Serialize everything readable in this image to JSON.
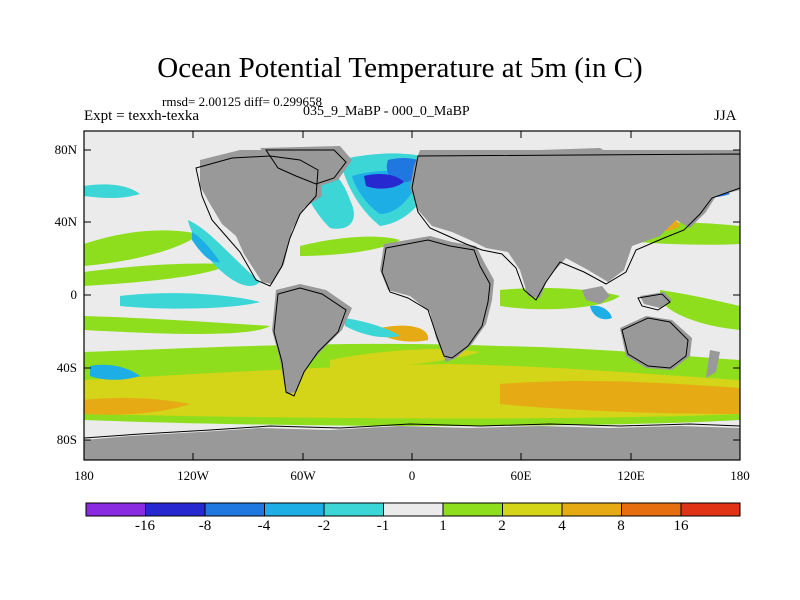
{
  "plot": {
    "title": "Ocean Potential Temperature at 5m (in C)",
    "stats": "rmsd= 2.00125 diff= 0.299658",
    "expt": "Expt = texxh-texka",
    "runs": "035_9_MaBP - 000_0_MaBP",
    "season": "JJA"
  },
  "axes": {
    "y_ticks": [
      "80N",
      "40N",
      "0",
      "40S",
      "80S"
    ],
    "x_ticks": [
      "180",
      "120W",
      "60W",
      "0",
      "60E",
      "120E",
      "180"
    ]
  },
  "colorbar": {
    "labels": [
      "-16",
      "-8",
      "-4",
      "-2",
      "-1",
      "1",
      "2",
      "4",
      "8",
      "16"
    ],
    "colors": [
      "#8a2be2",
      "#2828d0",
      "#1e78e0",
      "#1eaee6",
      "#3cd6d6",
      "#ebebeb",
      "#8ede1e",
      "#d4d418",
      "#e6aa14",
      "#e66e0e",
      "#e03214"
    ]
  },
  "legend_colors": {
    "land": "#999999",
    "ocean_neutral": "#ebebeb"
  }
}
